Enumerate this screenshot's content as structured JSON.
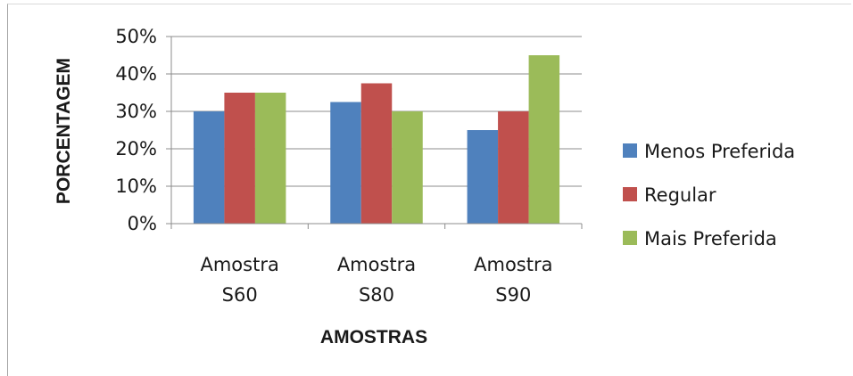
{
  "chart_data": {
    "type": "bar",
    "title": "",
    "xlabel": "AMOSTRAS",
    "ylabel": "PORCENTAGEM",
    "ylim": [
      0,
      50
    ],
    "y_ticks": [
      "0%",
      "10%",
      "20%",
      "30%",
      "40%",
      "50%"
    ],
    "y_tick_values": [
      0,
      10,
      20,
      30,
      40,
      50
    ],
    "categories": [
      [
        "Amostra",
        "S60"
      ],
      [
        "Amostra",
        "S80"
      ],
      [
        "Amostra",
        "S90"
      ]
    ],
    "series": [
      {
        "name": "Menos Preferida",
        "color": "#4f81bd",
        "values": [
          30,
          32.5,
          25
        ]
      },
      {
        "name": "Regular",
        "color": "#c0504d",
        "values": [
          35,
          37.5,
          30
        ]
      },
      {
        "name": "Mais Preferida",
        "color": "#9bbb59",
        "values": [
          35,
          30,
          45
        ]
      }
    ],
    "grid": true,
    "legend_position": "right"
  }
}
